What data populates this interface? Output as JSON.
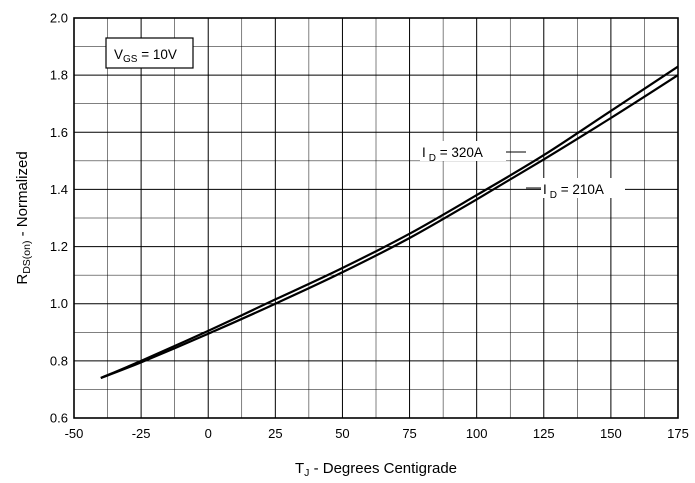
{
  "chart_data": {
    "type": "line",
    "title": "",
    "xlabel": {
      "main": "T",
      "sub": "J",
      "rest": " - Degrees Centigrade"
    },
    "ylabel": {
      "main": "R",
      "sub": "DS(on)",
      "rest": " - Normalized"
    },
    "xlim": [
      -50,
      175
    ],
    "ylim": [
      0.6,
      2.0
    ],
    "xticks": [
      -50,
      -25,
      0,
      25,
      50,
      75,
      100,
      125,
      150,
      175
    ],
    "xtick_labels": [
      "-50",
      "-25",
      "0",
      "25",
      "50",
      "75",
      "100",
      "125",
      "150",
      "175"
    ],
    "yticks": [
      0.6,
      0.8,
      1.0,
      1.2,
      1.4,
      1.6,
      1.8,
      2.0
    ],
    "ytick_labels": [
      "0.6",
      "0.8",
      "1.0",
      "1.2",
      "1.4",
      "1.6",
      "1.8",
      "2.0"
    ],
    "x_minor_step": 12.5,
    "y_minor_step": 0.1,
    "grid": true,
    "condition_label": {
      "main": "V",
      "sub": "GS",
      "rest": " = 10V"
    },
    "series": [
      {
        "name": "I D = 320A",
        "label": {
          "main": "I",
          "sub": "D",
          "rest": " = 320A"
        },
        "x": [
          -40,
          -25,
          0,
          25,
          50,
          75,
          100,
          125,
          150,
          175
        ],
        "y": [
          0.74,
          0.8,
          0.905,
          1.015,
          1.125,
          1.245,
          1.38,
          1.52,
          1.675,
          1.83
        ]
      },
      {
        "name": "I D = 210A",
        "label": {
          "main": "I",
          "sub": "D",
          "rest": " = 210A"
        },
        "x": [
          -40,
          -25,
          0,
          25,
          50,
          75,
          100,
          125,
          150,
          175
        ],
        "y": [
          0.74,
          0.795,
          0.895,
          1.0,
          1.11,
          1.23,
          1.365,
          1.505,
          1.65,
          1.8
        ]
      }
    ]
  }
}
